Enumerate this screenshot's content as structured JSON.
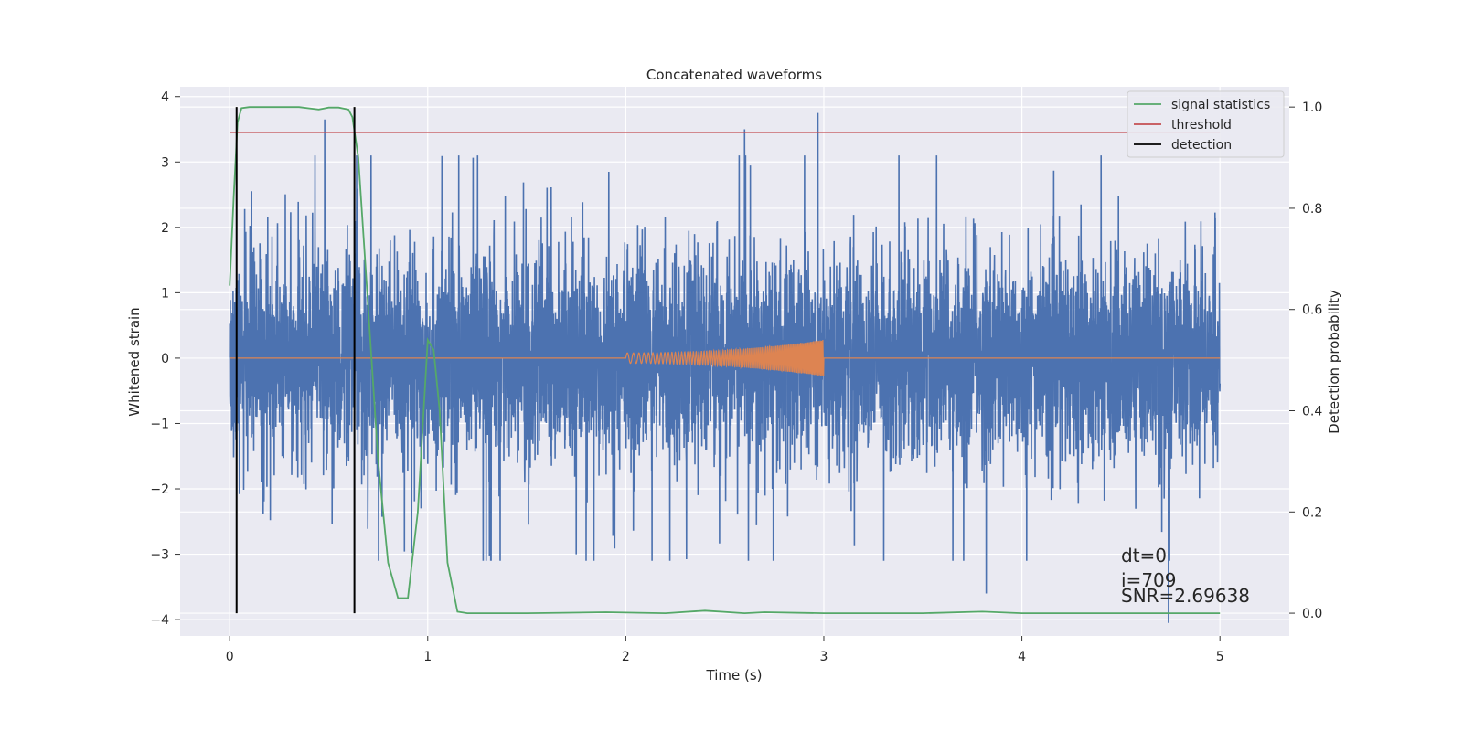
{
  "chart_data": {
    "type": "line",
    "title": "Concatenated waveforms",
    "xlabel": "Time (s)",
    "ylabel": "Whitened strain",
    "y2label": "Detection probability",
    "xlim": [
      -0.25,
      5.35
    ],
    "ylim": [
      -4.25,
      4.15
    ],
    "y2lim": [
      -0.045,
      1.04
    ],
    "xticks": [
      0,
      1,
      2,
      3,
      4,
      5
    ],
    "yticks": [
      -4,
      -3,
      -2,
      -1,
      0,
      1,
      2,
      3,
      4
    ],
    "y2ticks": [
      0.0,
      0.2,
      0.4,
      0.6,
      0.8,
      1.0
    ],
    "y2ticklabels": [
      "0.0",
      "0.2",
      "0.4",
      "0.6",
      "0.8",
      "1.0"
    ],
    "grid": true,
    "legend_position": "top-right",
    "colors": {
      "background": "#eaeaf2",
      "grid": "#ffffff",
      "strain": "#4c72b0",
      "template": "#dd8452",
      "signal_statistics": "#55a868",
      "threshold": "#c44e52",
      "detection": "#000000"
    },
    "strain": {
      "x_start": 0.0,
      "x_end": 5.0,
      "typical_range": [
        -2.0,
        2.0
      ],
      "peaks": [
        {
          "x": 0.48,
          "y": 3.65
        },
        {
          "x": 2.6,
          "y": 3.5
        },
        {
          "x": 2.97,
          "y": 3.75
        },
        {
          "x": 3.82,
          "y": -3.6
        },
        {
          "x": 4.74,
          "y": -4.05
        },
        {
          "x": 1.75,
          "y": -3.0
        }
      ]
    },
    "template": {
      "x_start": 2.0,
      "x_end": 3.0,
      "amplitude_start": 0.08,
      "amplitude_end": 0.28
    },
    "series": [
      {
        "name": "signal statistics",
        "axis": "right",
        "x": [
          0.0,
          0.02,
          0.04,
          0.06,
          0.1,
          0.2,
          0.35,
          0.45,
          0.5,
          0.55,
          0.6,
          0.62,
          0.65,
          0.7,
          0.75,
          0.8,
          0.85,
          0.9,
          0.95,
          1.0,
          1.03,
          1.06,
          1.1,
          1.15,
          1.2,
          1.5,
          1.9,
          2.2,
          2.4,
          2.6,
          2.7,
          3.0,
          3.5,
          3.8,
          4.0,
          4.5,
          5.0
        ],
        "y": [
          0.647,
          0.82,
          0.97,
          0.998,
          1.0,
          1.0,
          1.0,
          0.995,
          0.999,
          0.999,
          0.995,
          0.98,
          0.9,
          0.6,
          0.3,
          0.1,
          0.03,
          0.03,
          0.2,
          0.54,
          0.52,
          0.4,
          0.1,
          0.003,
          0.0,
          0.0,
          0.002,
          0.0,
          0.005,
          0.0,
          0.002,
          0.0,
          0.0,
          0.003,
          0.0,
          0.0,
          0.0
        ]
      },
      {
        "name": "threshold",
        "axis": "right",
        "x": [
          0.0,
          5.0
        ],
        "y": [
          0.95,
          0.95
        ]
      },
      {
        "name": "detection",
        "axis": "right",
        "x_positions": [
          0.035,
          0.63
        ],
        "y_range": [
          0.0,
          1.0
        ]
      }
    ],
    "annotations": [
      "dt=0",
      "i=709",
      "SNR=2.69638"
    ]
  }
}
